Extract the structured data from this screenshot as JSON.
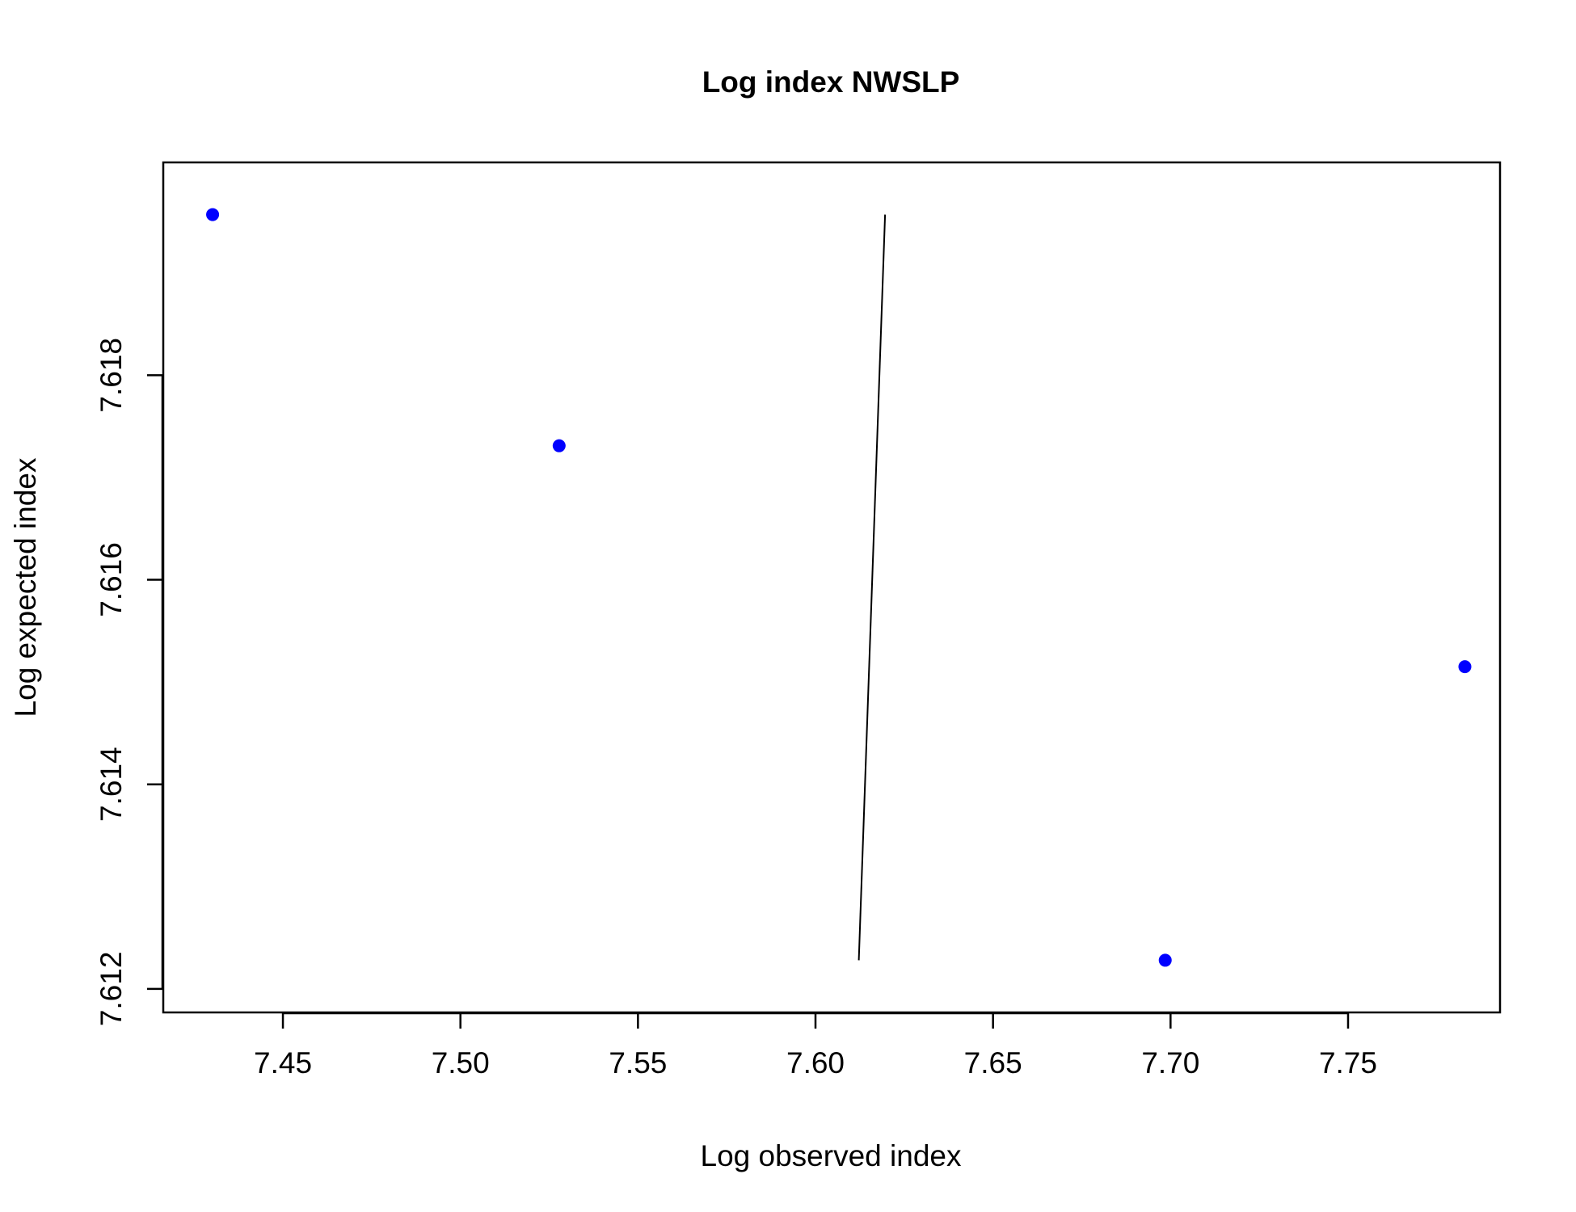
{
  "chart_data": {
    "type": "scatter",
    "title": "Log index NWSLP",
    "xlabel": "Log observed index",
    "ylabel": "Log expected index",
    "xlim": [
      7.4163,
      7.7928
    ],
    "ylim": [
      7.61177,
      7.62008
    ],
    "xticks": [
      "7.45",
      "7.50",
      "7.55",
      "7.60",
      "7.65",
      "7.70",
      "7.75"
    ],
    "yticks": [
      "7.612",
      "7.614",
      "7.616",
      "7.618"
    ],
    "grid": false,
    "point_color": "#0000ff",
    "line_color": "#000000",
    "points": [
      {
        "x": 7.4302,
        "y": 7.61957
      },
      {
        "x": 7.5278,
        "y": 7.61731
      },
      {
        "x": 7.6985,
        "y": 7.61228
      },
      {
        "x": 7.7829,
        "y": 7.61515
      }
    ],
    "line": [
      {
        "x": 7.6122,
        "y": 7.61228
      },
      {
        "x": 7.6196,
        "y": 7.61957
      }
    ]
  }
}
